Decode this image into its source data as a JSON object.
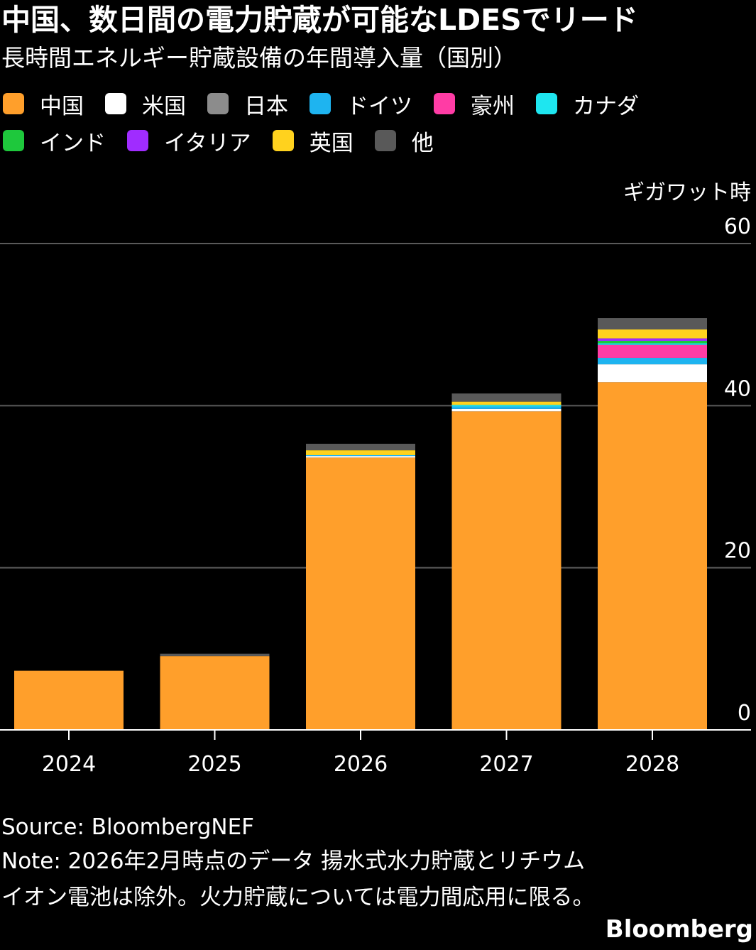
{
  "title": "中国、数日間の電力貯蔵が可能なLDESでリード",
  "subtitle": "長時間エネルギー貯蔵設備の年間導入量（国別）",
  "source": "Source:  BloombergNEF",
  "note": "Note: 2026年2月時点のデータ 揚水式水力貯蔵とリチウムイオン電池は除外。火力貯蔵については電力間応用に限る。",
  "brand": "Bloomberg",
  "chart_data": {
    "type": "bar",
    "stacked": true,
    "title": "中国、数日間の電力貯蔵が可能なLDESでリード",
    "subtitle": "長時間エネルギー貯蔵設備の年間導入量（国別）",
    "xlabel": "",
    "ylabel": "ギガワット時",
    "ylim": [
      0,
      60
    ],
    "yticks": [
      "0",
      "20",
      "40",
      "60"
    ],
    "grid": true,
    "legend_position": "top",
    "categories": [
      "2024",
      "2025",
      "2026",
      "2027",
      "2028"
    ],
    "series": [
      {
        "name": "中国",
        "color": "#ff9f2b",
        "values": [
          7.3,
          9.1,
          33.6,
          39.3,
          42.9
        ]
      },
      {
        "name": "米国",
        "color": "#ffffff",
        "values": [
          0,
          0,
          0.2,
          0.3,
          2.2
        ]
      },
      {
        "name": "日本",
        "color": "#8c8c8c",
        "values": [
          0,
          0,
          0,
          0,
          0
        ]
      },
      {
        "name": "ドイツ",
        "color": "#1eb4f0",
        "values": [
          0,
          0,
          0.1,
          0.3,
          0.8
        ]
      },
      {
        "name": "豪州",
        "color": "#ff3ca5",
        "values": [
          0,
          0,
          0,
          0,
          1.6
        ]
      },
      {
        "name": "カナダ",
        "color": "#1ee6f0",
        "values": [
          0,
          0,
          0,
          0.2,
          0.2
        ]
      },
      {
        "name": "インド",
        "color": "#1ec83c",
        "values": [
          0,
          0,
          0,
          0,
          0.3
        ]
      },
      {
        "name": "イタリア",
        "color": "#a02cff",
        "values": [
          0,
          0,
          0,
          0,
          0.3
        ]
      },
      {
        "name": "英国",
        "color": "#ffd21e",
        "values": [
          0,
          0,
          0.6,
          0.4,
          1.1
        ]
      },
      {
        "name": "他",
        "color": "#595959",
        "values": [
          0,
          0.3,
          0.8,
          1.0,
          1.4
        ]
      }
    ]
  }
}
